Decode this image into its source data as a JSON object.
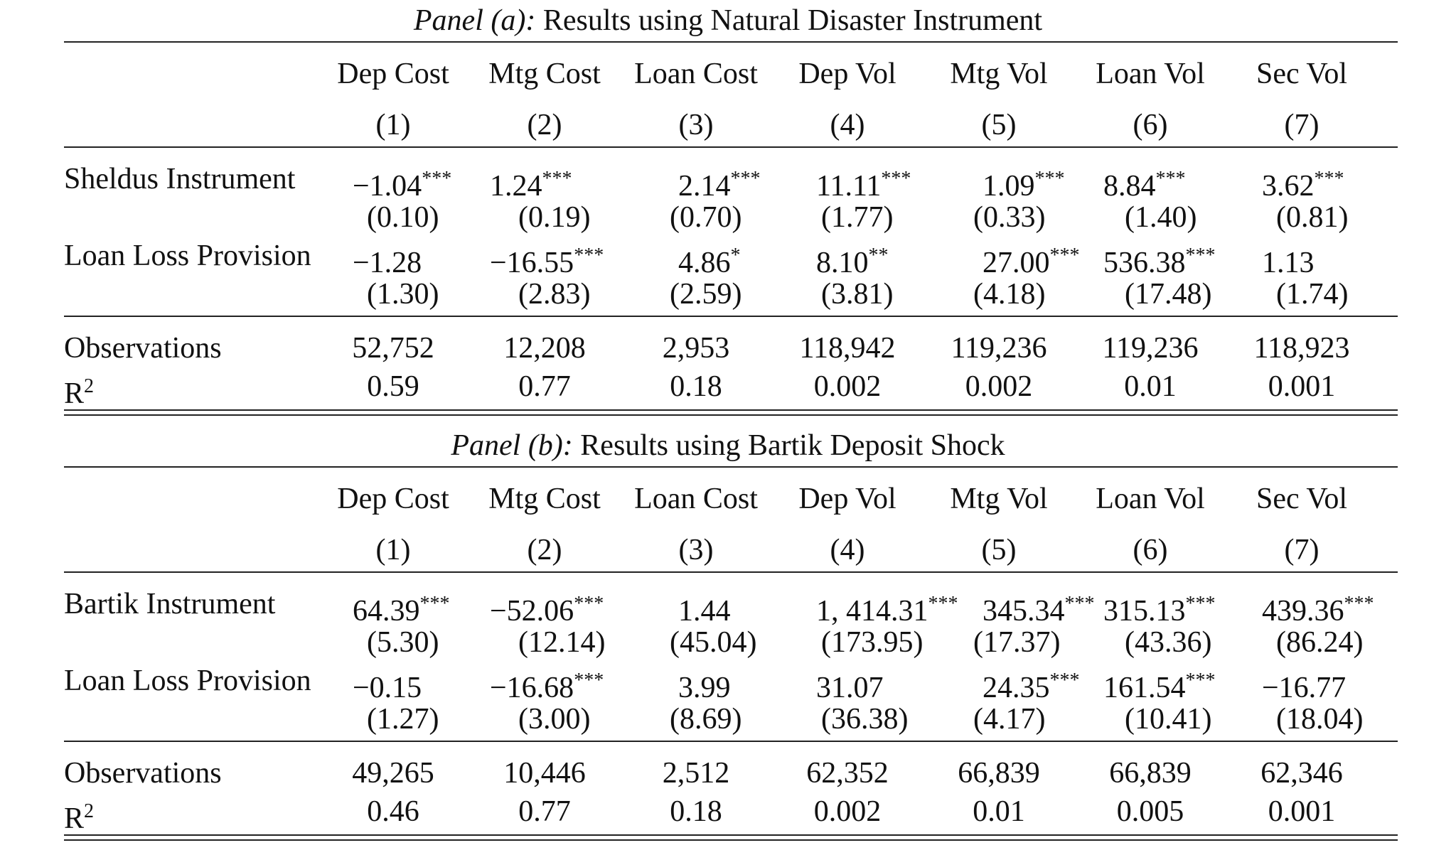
{
  "columns": [
    "Dep Cost",
    "Mtg Cost",
    "Loan Cost",
    "Dep Vol",
    "Mtg Vol",
    "Loan Vol",
    "Sec Vol"
  ],
  "column_numbers": [
    "(1)",
    "(2)",
    "(3)",
    "(4)",
    "(5)",
    "(6)",
    "(7)"
  ],
  "panels": [
    {
      "label": "Panel (a):",
      "title": "Results using Natural Disaster Instrument",
      "rows": [
        {
          "name": "Sheldus Instrument",
          "coef": [
            "−1.04",
            "1.24",
            "2.14",
            "11.11",
            "1.09",
            "8.84",
            "3.62"
          ],
          "stars": [
            "***",
            "***",
            "***",
            "***",
            "***",
            "***",
            "***"
          ],
          "se": [
            "(0.10)",
            "(0.19)",
            "(0.70)",
            "(1.77)",
            "(0.33)",
            "(1.40)",
            "(0.81)"
          ]
        },
        {
          "name": "Loan Loss Provision",
          "coef": [
            "−1.28",
            "−16.55",
            "4.86",
            "8.10",
            "27.00",
            "536.38",
            "1.13"
          ],
          "stars": [
            "",
            "***",
            "*",
            "**",
            "***",
            "***",
            ""
          ],
          "se": [
            "(1.30)",
            "(2.83)",
            "(2.59)",
            "(3.81)",
            "(4.18)",
            "(17.48)",
            "(1.74)"
          ]
        }
      ],
      "observations_label": "Observations",
      "observations": [
        "52,752",
        "12,208",
        "2,953",
        "118,942",
        "119,236",
        "119,236",
        "118,923"
      ],
      "r2_label": "R",
      "r2_sup": "2",
      "r2": [
        "0.59",
        "0.77",
        "0.18",
        "0.002",
        "0.002",
        "0.01",
        "0.001"
      ]
    },
    {
      "label": "Panel (b):",
      "title": "Results using Bartik Deposit Shock",
      "rows": [
        {
          "name": "Bartik Instrument",
          "coef": [
            "64.39",
            "−52.06",
            "1.44",
            "1, 414.31",
            "345.34",
            "315.13",
            "439.36"
          ],
          "stars": [
            "***",
            "***",
            "",
            "***",
            "***",
            "***",
            "***"
          ],
          "se": [
            "(5.30)",
            "(12.14)",
            "(45.04)",
            "(173.95)",
            "(17.37)",
            "(43.36)",
            "(86.24)"
          ]
        },
        {
          "name": "Loan Loss Provision",
          "coef": [
            "−0.15",
            "−16.68",
            "3.99",
            "31.07",
            "24.35",
            "161.54",
            "−16.77"
          ],
          "stars": [
            "",
            "***",
            "",
            "",
            "***",
            "***",
            ""
          ],
          "se": [
            "(1.27)",
            "(3.00)",
            "(8.69)",
            "(36.38)",
            "(4.17)",
            "(10.41)",
            "(18.04)"
          ]
        }
      ],
      "observations_label": "Observations",
      "observations": [
        "49,265",
        "10,446",
        "2,512",
        "62,352",
        "66,839",
        "66,839",
        "62,346"
      ],
      "r2_label": "R",
      "r2_sup": "2",
      "r2": [
        "0.46",
        "0.77",
        "0.18",
        "0.002",
        "0.01",
        "0.005",
        "0.001"
      ]
    }
  ]
}
